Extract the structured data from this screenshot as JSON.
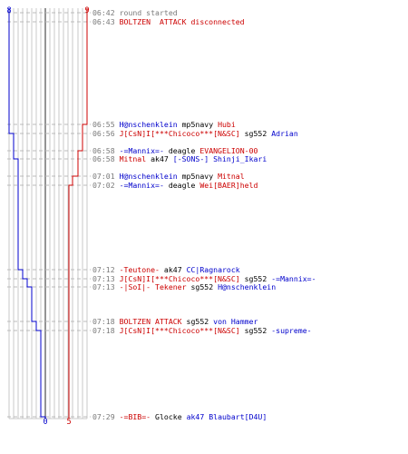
{
  "colors": {
    "team_a": "#0000cc",
    "team_b": "#cc0000",
    "time": "#7a7a7a",
    "neutral": "#000000",
    "grid": "#c8c8c8",
    "center_line": "#707070",
    "dash": "#bbbbbb"
  },
  "scoreboard": {
    "team_a_start": "8",
    "team_b_start": "9",
    "team_a_end": "0",
    "team_b_end": "5"
  },
  "events": [
    {
      "time": "06:42",
      "type": "system",
      "text": "round started"
    },
    {
      "time": "06:43",
      "type": "system_red",
      "text": "BOLTZEN  ATTACK disconnected"
    },
    {
      "time": "06:55",
      "killer": "H@nschenklein",
      "killer_team": "a",
      "weapon": "mp5navy",
      "victim": "Hubi",
      "victim_team": "b"
    },
    {
      "time": "06:56",
      "killer": "J[CsN]I[***Chicoco***[N&SC]",
      "killer_team": "b",
      "weapon": "sg552",
      "victim": "Adrian",
      "victim_team": "a"
    },
    {
      "time": "06:58",
      "killer": "-=Mannix=-",
      "killer_team": "a",
      "weapon": "deagle",
      "victim": "EVANGELION-00",
      "victim_team": "b"
    },
    {
      "time": "06:58",
      "killer": "Mitnal",
      "killer_team": "b",
      "weapon": "ak47",
      "victim": "[-SONS-] Shinji_Ikari",
      "victim_team": "a"
    },
    {
      "time": "07:01",
      "killer": "H@nschenklein",
      "killer_team": "a",
      "weapon": "mp5navy",
      "victim": "Mitnal",
      "victim_team": "b"
    },
    {
      "time": "07:02",
      "killer": "-=Mannix=-",
      "killer_team": "a",
      "weapon": "deagle",
      "victim": "Wei[BAER]held",
      "victim_team": "b"
    },
    {
      "time": "07:12",
      "killer": "-Teutone-",
      "killer_team": "b",
      "weapon": "ak47",
      "victim": "CC|Ragnarock",
      "victim_team": "a"
    },
    {
      "time": "07:13",
      "killer": "J[CsN]I[***Chicoco***[N&SC]",
      "killer_team": "b",
      "weapon": "sg552",
      "victim": "-=Mannix=-",
      "victim_team": "a"
    },
    {
      "time": "07:13",
      "killer": "-|SoI|- Tekener",
      "killer_team": "b",
      "weapon": "sg552",
      "victim": "H@nschenklein",
      "victim_team": "a"
    },
    {
      "time": "07:18",
      "killer": "BOLTZEN ATTACK",
      "killer_team": "b",
      "weapon": "sg552",
      "victim": "von Hammer",
      "victim_team": "a"
    },
    {
      "time": "07:18",
      "killer": "J[CsN]I[***Chicoco***[N&SC]",
      "killer_team": "b",
      "weapon": "sg552",
      "victim": "-supreme-",
      "victim_team": "a"
    },
    {
      "time": "07:29",
      "killer": "-=BIB=-",
      "killer_team": "b",
      "weapon": "Glocke",
      "victim": "ak47 Blaubart[D4U]",
      "victim_team": "a"
    }
  ]
}
